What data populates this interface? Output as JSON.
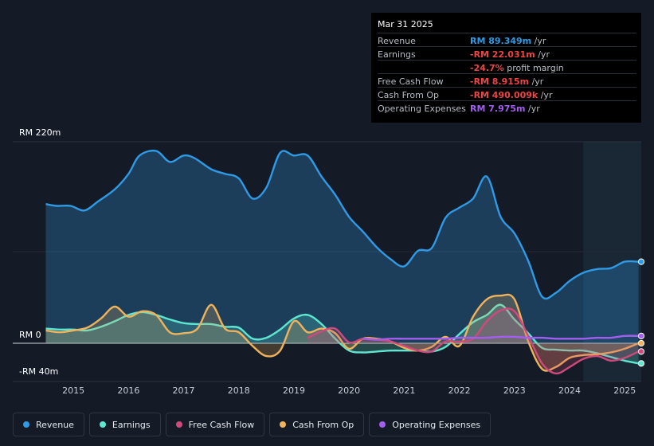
{
  "tooltip": {
    "date": "Mar 31 2025",
    "rows": [
      {
        "label": "Revenue",
        "value": "RM 89.349m",
        "unit": " /yr",
        "color": "#2f9ae6"
      },
      {
        "label": "Earnings",
        "value": "-RM 22.031m",
        "unit": " /yr",
        "color": "#ee4444"
      },
      {
        "label": "",
        "value": "-24.7%",
        "unit": " profit margin",
        "color": "#ee4444"
      },
      {
        "label": "Free Cash Flow",
        "value": "-RM 8.915m",
        "unit": " /yr",
        "color": "#ee4444"
      },
      {
        "label": "Cash From Op",
        "value": "-RM 490.009k",
        "unit": " /yr",
        "color": "#ee4444"
      },
      {
        "label": "Operating Expenses",
        "value": "RM 7.975m",
        "unit": " /yr",
        "color": "#a35ef0"
      }
    ]
  },
  "chart_data": {
    "type": "area",
    "ylim": [
      -40,
      220
    ],
    "y_labels": {
      "top": "RM 220m",
      "zero": "RM 0",
      "bottom": "-RM 40m"
    },
    "x_ticks": [
      "2015",
      "2016",
      "2017",
      "2018",
      "2019",
      "2020",
      "2021",
      "2022",
      "2023",
      "2024",
      "2025"
    ],
    "x_tick_values": [
      2015,
      2016,
      2017,
      2018,
      2019,
      2020,
      2021,
      2022,
      2023,
      2024,
      2025
    ],
    "xlim": [
      2013.9,
      2025.3
    ],
    "forecast_start": 2024.25,
    "series": [
      {
        "name": "Revenue",
        "color": "#2f9ae6",
        "x": [
          2014.5,
          2014.7,
          2014.95,
          2015.2,
          2015.45,
          2015.75,
          2016.0,
          2016.2,
          2016.5,
          2016.75,
          2017.0,
          2017.2,
          2017.5,
          2017.75,
          2018.0,
          2018.25,
          2018.5,
          2018.75,
          2019.0,
          2019.25,
          2019.5,
          2019.75,
          2020.0,
          2020.25,
          2020.5,
          2020.75,
          2021.0,
          2021.25,
          2021.5,
          2021.75,
          2022.0,
          2022.25,
          2022.5,
          2022.75,
          2023.0,
          2023.25,
          2023.5,
          2023.75,
          2024.0,
          2024.25,
          2024.5,
          2024.75,
          2025.0,
          2025.25
        ],
        "y": [
          152,
          150,
          150,
          145,
          155,
          168,
          185,
          205,
          210,
          198,
          205,
          202,
          190,
          185,
          180,
          158,
          170,
          208,
          205,
          205,
          182,
          162,
          138,
          122,
          105,
          92,
          84,
          101,
          104,
          137,
          148,
          158,
          182,
          138,
          120,
          90,
          51,
          55,
          68,
          77,
          81,
          82,
          89,
          89
        ]
      },
      {
        "name": "Earnings",
        "color": "#5ee6d0",
        "x": [
          2014.5,
          2014.75,
          2015.0,
          2015.25,
          2015.5,
          2015.75,
          2016.0,
          2016.25,
          2016.5,
          2016.75,
          2017.0,
          2017.25,
          2017.5,
          2017.75,
          2018.0,
          2018.25,
          2018.5,
          2018.75,
          2019.0,
          2019.25,
          2019.5,
          2019.75,
          2020.0,
          2020.25,
          2020.5,
          2020.75,
          2021.0,
          2021.25,
          2021.5,
          2021.75,
          2022.0,
          2022.25,
          2022.5,
          2022.75,
          2023.0,
          2023.25,
          2023.5,
          2023.75,
          2024.0,
          2024.25,
          2024.5,
          2024.75,
          2025.0,
          2025.25
        ],
        "y": [
          16,
          15,
          15,
          14,
          18,
          24,
          31,
          34,
          31,
          26,
          22,
          21,
          21,
          18,
          17,
          5,
          6,
          15,
          27,
          31,
          21,
          5,
          -8,
          -10,
          -9,
          -8,
          -8,
          -8,
          -9,
          -4,
          10,
          23,
          31,
          42,
          26,
          11,
          -5,
          -7,
          -8,
          -8,
          -11,
          -15,
          -19,
          -22
        ]
      },
      {
        "name": "Free Cash Flow",
        "color": "#cf4a7c",
        "x": [
          2019.25,
          2019.5,
          2019.75,
          2020.0,
          2020.25,
          2020.5,
          2020.75,
          2021.0,
          2021.25,
          2021.5,
          2021.75,
          2022.0,
          2022.25,
          2022.5,
          2022.75,
          2023.0,
          2023.25,
          2023.5,
          2023.75,
          2024.0,
          2024.25,
          2024.5,
          2024.75,
          2025.0,
          2025.25
        ],
        "y": [
          6,
          13,
          16,
          1,
          5,
          4,
          2,
          -3,
          -8,
          -9,
          2,
          2,
          5,
          24,
          36,
          35,
          8,
          -22,
          -33,
          -26,
          -17,
          -14,
          -19,
          -16,
          -9
        ]
      },
      {
        "name": "Cash From Op",
        "color": "#f0b25a",
        "x": [
          2014.5,
          2014.75,
          2015.0,
          2015.25,
          2015.5,
          2015.75,
          2016.0,
          2016.25,
          2016.5,
          2016.75,
          2017.0,
          2017.25,
          2017.5,
          2017.75,
          2018.0,
          2018.25,
          2018.5,
          2018.75,
          2019.0,
          2019.25,
          2019.5,
          2019.75,
          2020.0,
          2020.25,
          2020.5,
          2020.75,
          2021.0,
          2021.25,
          2021.5,
          2021.75,
          2022.0,
          2022.25,
          2022.5,
          2022.75,
          2023.0,
          2023.25,
          2023.5,
          2023.75,
          2024.0,
          2024.25,
          2024.5,
          2024.75,
          2025.0,
          2025.25
        ],
        "y": [
          14,
          12,
          14,
          17,
          27,
          40,
          29,
          35,
          31,
          12,
          11,
          16,
          42,
          16,
          12,
          -3,
          -14,
          -8,
          24,
          12,
          16,
          11,
          -6,
          5,
          5,
          2,
          -5,
          -8,
          -4,
          7,
          -3,
          29,
          48,
          52,
          48,
          2,
          -28,
          -26,
          -16,
          -13,
          -12,
          -10,
          -6,
          0
        ]
      },
      {
        "name": "Operating Expenses",
        "color": "#a35ef0",
        "x": [
          2020.25,
          2020.5,
          2020.75,
          2021.0,
          2021.25,
          2021.5,
          2021.75,
          2022.0,
          2022.25,
          2022.5,
          2022.75,
          2023.0,
          2023.25,
          2023.5,
          2023.75,
          2024.0,
          2024.25,
          2024.5,
          2024.75,
          2025.0,
          2025.25
        ],
        "y": [
          5,
          4,
          5,
          5,
          5,
          5,
          5,
          6,
          6,
          6,
          7,
          7,
          6,
          6,
          5,
          5,
          5,
          6,
          6,
          8,
          8
        ]
      }
    ],
    "legend": [
      "Revenue",
      "Earnings",
      "Free Cash Flow",
      "Cash From Op",
      "Operating Expenses"
    ]
  }
}
